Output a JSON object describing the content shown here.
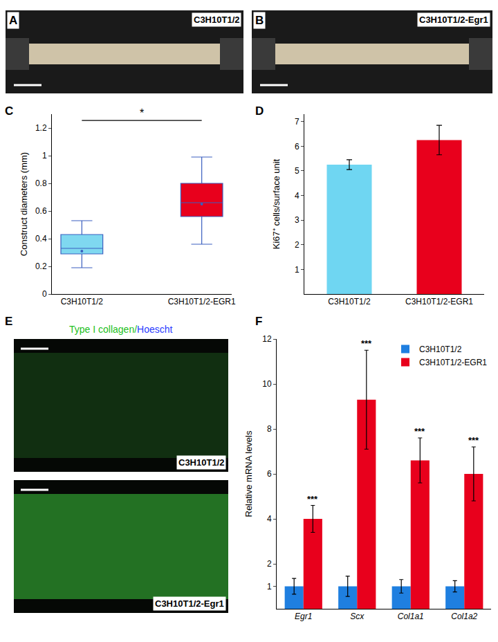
{
  "images": [
    {
      "panel": "A",
      "text": "C3H10T1/2"
    },
    {
      "panel": "B",
      "text": "C3H10T1/2-Egr1"
    },
    {
      "panel": "E",
      "text": "C3H10T1/2"
    },
    {
      "panel": "E",
      "text": "C3H10T1/2-Egr1"
    }
  ],
  "stain_label": [
    {
      "text": "Type I collagen",
      "color": "#22c022"
    },
    {
      "text": "/",
      "color": "#22c022"
    },
    {
      "text": "Hoescht",
      "color": "#2a3cff"
    }
  ],
  "chart_data": [
    {
      "panel": "C",
      "type": "box",
      "categories": [
        "C3H10T1/2",
        "C3H10T1/2-EGR1"
      ],
      "colors": [
        "#7fd8f0",
        "#e8001c"
      ],
      "boxes": [
        {
          "min": 0.19,
          "q1": 0.29,
          "median": 0.33,
          "q3": 0.43,
          "max": 0.53,
          "mean": 0.31
        },
        {
          "min": 0.36,
          "q1": 0.56,
          "median": 0.66,
          "q3": 0.8,
          "max": 0.99,
          "mean": 0.65
        }
      ],
      "y_label": "Construct diameters (mm)",
      "ylim": [
        0,
        1.3
      ],
      "yticks": [
        0,
        0.2,
        0.4,
        0.6,
        0.8,
        1.0,
        1.2
      ],
      "annotations": [
        {
          "text": "*",
          "between": [
            0,
            1
          ]
        }
      ]
    },
    {
      "panel": "D",
      "type": "bar",
      "categories": [
        "C3H10T1/2",
        "C3H10T1/2-EGR1"
      ],
      "values": [
        5.25,
        6.25
      ],
      "errors": [
        0.2,
        0.6
      ],
      "colors": [
        "#6fd6f2",
        "#e8001c"
      ],
      "y_label": "Ki67⁺ cells/surface unit",
      "ylim": [
        0,
        7.3
      ],
      "yticks": [
        1,
        2,
        3,
        4,
        5,
        6,
        7
      ]
    },
    {
      "panel": "F",
      "type": "bar",
      "categories": [
        "Egr1",
        "Scx",
        "Col1a1",
        "Col1a2"
      ],
      "series": [
        {
          "name": "C3H10T1/2",
          "color": "#1f7fe0",
          "values": [
            1,
            1,
            1,
            1
          ],
          "errors": [
            0.35,
            0.45,
            0.3,
            0.25
          ]
        },
        {
          "name": "C3H10T1/2-EGR1",
          "color": "#e8001c",
          "values": [
            4.0,
            9.3,
            6.6,
            6.0
          ],
          "errors": [
            0.6,
            2.2,
            1.0,
            1.2
          ]
        }
      ],
      "y_label": "Relative mRNA levels",
      "ylim": [
        0,
        12
      ],
      "yticks": [
        1,
        2,
        4,
        6,
        8,
        10,
        12
      ],
      "legend": "top right",
      "annotations": [
        {
          "category": "Egr1",
          "text": "***"
        },
        {
          "category": "Scx",
          "text": "***"
        },
        {
          "category": "Col1a1",
          "text": "***"
        },
        {
          "category": "Col1a2",
          "text": "***"
        }
      ]
    }
  ]
}
